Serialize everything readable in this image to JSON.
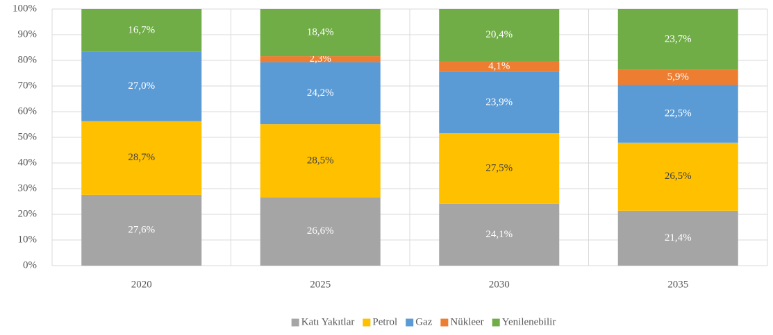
{
  "chart_data": {
    "type": "stacked_bar_100",
    "categories": [
      "2020",
      "2025",
      "2030",
      "2035"
    ],
    "series": [
      {
        "name": "Katı Yakıtlar",
        "color": "#a5a5a5",
        "values": [
          27.6,
          26.6,
          24.1,
          21.4
        ],
        "value_labels": [
          "27,6%",
          "26,6%",
          "24,1%",
          "21,4%"
        ]
      },
      {
        "name": "Petrol",
        "color": "#ffc000",
        "values": [
          28.7,
          28.5,
          27.5,
          26.5
        ],
        "value_labels": [
          "28,7%",
          "28,5%",
          "27,5%",
          "26,5%"
        ]
      },
      {
        "name": "Gaz",
        "color": "#5b9bd5",
        "values": [
          27.0,
          24.2,
          23.9,
          22.5
        ],
        "value_labels": [
          "27,0%",
          "24,2%",
          "23,9%",
          "22,5%"
        ]
      },
      {
        "name": "Nükleer",
        "color": "#ed7d31",
        "values": [
          null,
          2.3,
          4.1,
          5.9
        ],
        "value_labels": [
          null,
          "2,3%",
          "4,1%",
          "5,9%"
        ]
      },
      {
        "name": "Yenilenebilir",
        "color": "#70ad47",
        "values": [
          16.7,
          18.4,
          20.4,
          23.7
        ],
        "value_labels": [
          "16,7%",
          "18,4%",
          "20,4%",
          "23,7%"
        ]
      }
    ],
    "ylim": [
      0,
      100
    ],
    "yticks": [
      {
        "value": 0,
        "label": "0%"
      },
      {
        "value": 10,
        "label": "10%"
      },
      {
        "value": 20,
        "label": "20%"
      },
      {
        "value": 30,
        "label": "30%"
      },
      {
        "value": 40,
        "label": "40%"
      },
      {
        "value": 50,
        "label": "50%"
      },
      {
        "value": 60,
        "label": "60%"
      },
      {
        "value": 70,
        "label": "70%"
      },
      {
        "value": 80,
        "label": "80%"
      },
      {
        "value": 90,
        "label": "90%"
      },
      {
        "value": 100,
        "label": "100%"
      }
    ],
    "grid": true,
    "legend": "bottom"
  }
}
